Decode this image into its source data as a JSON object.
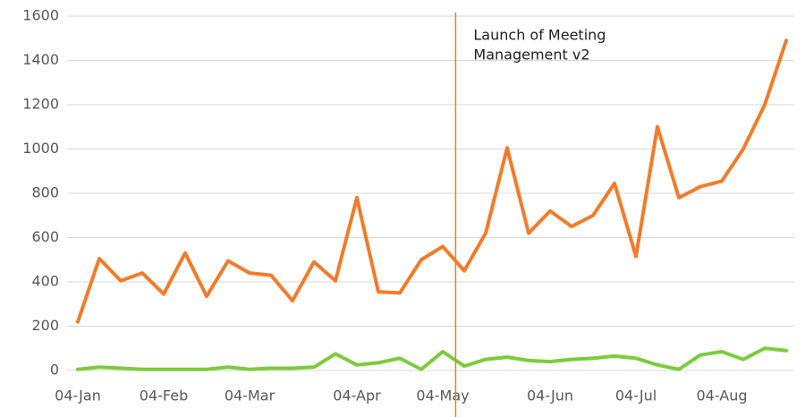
{
  "chart_data": {
    "type": "line",
    "categories": [
      "04-Jan",
      null,
      null,
      null,
      "04-Feb",
      null,
      null,
      null,
      "04-Mar",
      null,
      null,
      null,
      null,
      "04-Apr",
      null,
      null,
      null,
      "04-May",
      null,
      null,
      null,
      null,
      "04-Jun",
      null,
      null,
      null,
      "04-Jul",
      null,
      null,
      null,
      "04-Aug",
      null,
      null,
      null
    ],
    "series": [
      {
        "color": "#f47b2a",
        "values": [
          220,
          505,
          405,
          440,
          345,
          530,
          335,
          495,
          440,
          430,
          315,
          490,
          405,
          780,
          355,
          350,
          500,
          560,
          450,
          620,
          1005,
          620,
          720,
          650,
          700,
          845,
          515,
          1100,
          780,
          830,
          855,
          1000,
          1200,
          1490
        ]
      },
      {
        "color": "#7ccc3e",
        "values": [
          5,
          15,
          10,
          5,
          5,
          5,
          5,
          15,
          5,
          10,
          10,
          15,
          75,
          25,
          35,
          55,
          5,
          85,
          20,
          50,
          60,
          45,
          40,
          50,
          55,
          65,
          55,
          25,
          5,
          70,
          85,
          50,
          100,
          90
        ]
      }
    ],
    "ylim": [
      0,
      1600
    ],
    "yticks": [
      0,
      200,
      400,
      600,
      800,
      1000,
      1200,
      1400,
      1600
    ],
    "grid": true,
    "annotation": {
      "lines": [
        "Launch of Meeting",
        "Management v2"
      ],
      "color": "#f47b2a"
    }
  }
}
